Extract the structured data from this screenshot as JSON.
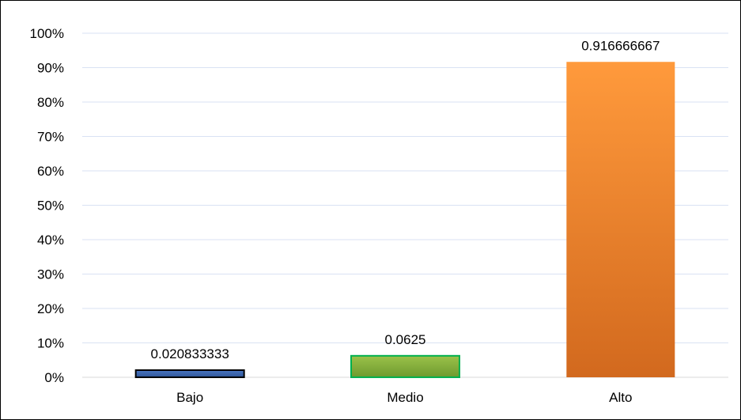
{
  "chart_data": {
    "type": "bar",
    "title": "",
    "xlabel": "",
    "ylabel": "",
    "categories": [
      "Bajo",
      "Medio",
      "Alto"
    ],
    "values": [
      0.020833333,
      0.0625,
      0.916666667
    ],
    "data_labels": [
      "0.020833333",
      "0.0625",
      "0.916666667"
    ],
    "ylim": [
      0,
      1
    ],
    "y_ticks": [
      0,
      0.1,
      0.2,
      0.3,
      0.4,
      0.5,
      0.6,
      0.7,
      0.8,
      0.9,
      1.0
    ],
    "y_tick_labels": [
      "0%",
      "10%",
      "20%",
      "30%",
      "40%",
      "50%",
      "60%",
      "70%",
      "80%",
      "90%",
      "100%"
    ],
    "grid": true,
    "legend": "none",
    "colors": {
      "Bajo": {
        "top": "#4a78c4",
        "bottom": "#2f5597",
        "border": "#000000"
      },
      "Medio": {
        "top": "#9bc24a",
        "bottom": "#6e9a2e",
        "border": "#00b050"
      },
      "Alto": {
        "top": "#ff9a3c",
        "bottom": "#d2691e",
        "border": "none"
      }
    },
    "grid_color": "#d9e2f3",
    "axis_color": "#d9d9d9"
  }
}
